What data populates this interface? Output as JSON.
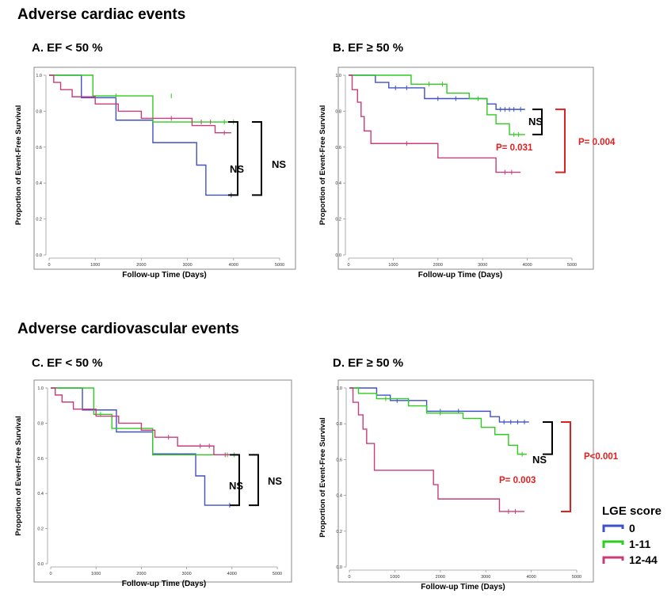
{
  "sections": [
    {
      "title": "Adverse cardiac events"
    },
    {
      "title": "Adverse cardiovascular events"
    }
  ],
  "legend": {
    "title": "LGE score",
    "items": [
      {
        "label": "0",
        "color": "#3f51c6"
      },
      {
        "label": "1-11",
        "color": "#2ecc1f"
      },
      {
        "label": "12-44",
        "color": "#c83c7c"
      }
    ]
  },
  "chart_data": [
    {
      "type": "line",
      "title": "A. EF < 50 %",
      "xlabel": "Follow-up Time (Days)",
      "ylabel": "Proportion of Event-Free Survival",
      "xlim": [
        0,
        5000
      ],
      "ylim": [
        0,
        1.0
      ],
      "x_ticks": [
        "0",
        "1000",
        "2000",
        "3000",
        "4000",
        "5000"
      ],
      "y_ticks": [
        "0.0",
        "0.2",
        "0.4",
        "0.6",
        "0.8",
        "1.0"
      ],
      "series": [
        {
          "name": "0",
          "color": "#3f51c6",
          "steps": [
            [
              0,
              1.0
            ],
            [
              700,
              0.875
            ],
            [
              1450,
              0.75
            ],
            [
              2250,
              0.625
            ],
            [
              3200,
              0.5
            ],
            [
              3400,
              0.333
            ],
            [
              4050,
              0.333
            ]
          ],
          "censor": [
            [
              3950,
              0.333
            ]
          ]
        },
        {
          "name": "1-11",
          "color": "#2ecc1f",
          "steps": [
            [
              0,
              1.0
            ],
            [
              950,
              0.885
            ],
            [
              2250,
              0.74
            ],
            [
              4100,
              0.74
            ]
          ],
          "censor": [
            [
              1450,
              0.885
            ],
            [
              2650,
              0.885
            ],
            [
              3800,
              0.74
            ],
            [
              4000,
              0.74
            ]
          ]
        },
        {
          "name": "12-44",
          "color": "#c83c7c",
          "steps": [
            [
              0,
              1.0
            ],
            [
              100,
              0.96
            ],
            [
              250,
              0.92
            ],
            [
              500,
              0.88
            ],
            [
              1000,
              0.84
            ],
            [
              1500,
              0.8
            ],
            [
              2000,
              0.76
            ],
            [
              3100,
              0.72
            ],
            [
              3600,
              0.68
            ],
            [
              3950,
              0.68
            ]
          ],
          "censor": [
            [
              2650,
              0.76
            ],
            [
              3300,
              0.74
            ],
            [
              3500,
              0.74
            ],
            [
              3800,
              0.68
            ]
          ]
        }
      ],
      "annotations": [
        {
          "text": "NS",
          "color": "#000000"
        },
        {
          "text": "NS",
          "color": "#000000"
        }
      ]
    },
    {
      "type": "line",
      "title": "B. EF ≥ 50 %",
      "xlabel": "Follow-up Time (Days)",
      "ylabel": "Proportion of Event-Free Survival",
      "xlim": [
        0,
        5000
      ],
      "ylim": [
        0,
        1.0
      ],
      "x_ticks": [
        "0",
        "1000",
        "2000",
        "3000",
        "4000",
        "5000"
      ],
      "y_ticks": [
        "0.0",
        "0.2",
        "0.4",
        "0.6",
        "0.8",
        "1.0"
      ],
      "series": [
        {
          "name": "0",
          "color": "#3f51c6",
          "steps": [
            [
              0,
              1.0
            ],
            [
              600,
              0.96
            ],
            [
              900,
              0.93
            ],
            [
              1700,
              0.87
            ],
            [
              3100,
              0.84
            ],
            [
              3300,
              0.81
            ],
            [
              3950,
              0.81
            ]
          ],
          "censor": [
            [
              1050,
              0.93
            ],
            [
              1300,
              0.93
            ],
            [
              2000,
              0.87
            ],
            [
              2400,
              0.87
            ],
            [
              3400,
              0.81
            ],
            [
              3500,
              0.81
            ],
            [
              3600,
              0.81
            ],
            [
              3700,
              0.81
            ],
            [
              3850,
              0.81
            ]
          ]
        },
        {
          "name": "1-11",
          "color": "#2ecc1f",
          "steps": [
            [
              0,
              1.0
            ],
            [
              1400,
              0.95
            ],
            [
              2200,
              0.9
            ],
            [
              2700,
              0.87
            ],
            [
              3100,
              0.78
            ],
            [
              3300,
              0.73
            ],
            [
              3600,
              0.67
            ],
            [
              3950,
              0.67
            ]
          ],
          "censor": [
            [
              1800,
              0.95
            ],
            [
              2100,
              0.95
            ],
            [
              2900,
              0.87
            ],
            [
              3700,
              0.67
            ],
            [
              3800,
              0.67
            ]
          ]
        },
        {
          "name": "12-44",
          "color": "#c83c7c",
          "steps": [
            [
              0,
              1.0
            ],
            [
              80,
              0.92
            ],
            [
              200,
              0.85
            ],
            [
              280,
              0.77
            ],
            [
              350,
              0.69
            ],
            [
              500,
              0.62
            ],
            [
              2000,
              0.54
            ],
            [
              3300,
              0.46
            ],
            [
              3850,
              0.46
            ]
          ],
          "censor": [
            [
              1300,
              0.62
            ],
            [
              3500,
              0.46
            ],
            [
              3650,
              0.46
            ]
          ]
        }
      ],
      "annotations": [
        {
          "text": "NS",
          "color": "#000000"
        },
        {
          "text": "P= 0.031",
          "color": "#e02020"
        },
        {
          "text": "P= 0.004",
          "color": "#e02020"
        }
      ]
    },
    {
      "type": "line",
      "title": "C. EF < 50 %",
      "xlabel": "Follow-up Time (Days)",
      "ylabel": "Proportion of Event-Free Survival",
      "xlim": [
        0,
        5000
      ],
      "ylim": [
        0,
        1.0
      ],
      "x_ticks": [
        "0",
        "1000",
        "2000",
        "3000",
        "4000",
        "5000"
      ],
      "y_ticks": [
        "0.0",
        "0.2",
        "0.4",
        "0.6",
        "0.8",
        "1.0"
      ],
      "series": [
        {
          "name": "0",
          "color": "#3f51c6",
          "steps": [
            [
              0,
              1.0
            ],
            [
              700,
              0.875
            ],
            [
              1450,
              0.75
            ],
            [
              2250,
              0.625
            ],
            [
              3200,
              0.5
            ],
            [
              3400,
              0.333
            ],
            [
              4050,
              0.333
            ]
          ],
          "censor": [
            [
              3950,
              0.333
            ]
          ]
        },
        {
          "name": "1-11",
          "color": "#2ecc1f",
          "steps": [
            [
              0,
              1.0
            ],
            [
              950,
              0.85
            ],
            [
              1350,
              0.77
            ],
            [
              2250,
              0.62
            ],
            [
              4100,
              0.62
            ]
          ],
          "censor": [
            [
              1100,
              0.85
            ],
            [
              3900,
              0.62
            ],
            [
              4050,
              0.62
            ]
          ]
        },
        {
          "name": "12-44",
          "color": "#c83c7c",
          "steps": [
            [
              0,
              1.0
            ],
            [
              100,
              0.96
            ],
            [
              250,
              0.92
            ],
            [
              500,
              0.88
            ],
            [
              1000,
              0.84
            ],
            [
              1500,
              0.8
            ],
            [
              2000,
              0.76
            ],
            [
              2300,
              0.72
            ],
            [
              2800,
              0.67
            ],
            [
              3600,
              0.62
            ],
            [
              3950,
              0.62
            ]
          ],
          "censor": [
            [
              2600,
              0.72
            ],
            [
              3300,
              0.67
            ],
            [
              3500,
              0.67
            ],
            [
              3850,
              0.62
            ]
          ]
        }
      ],
      "annotations": [
        {
          "text": "NS",
          "color": "#000000"
        },
        {
          "text": "NS",
          "color": "#000000"
        }
      ]
    },
    {
      "type": "line",
      "title": "D. EF ≥ 50 %",
      "xlabel": "Follow-up Time (Days)",
      "ylabel": "Proportion of Event-Free Survival",
      "xlim": [
        0,
        5000
      ],
      "ylim": [
        0,
        1.0
      ],
      "x_ticks": [
        "0",
        "1000",
        "2000",
        "3000",
        "4000",
        "5000"
      ],
      "y_ticks": [
        "0.0",
        "0.2",
        "0.4",
        "0.6",
        "0.8",
        "1.0"
      ],
      "series": [
        {
          "name": "0",
          "color": "#3f51c6",
          "steps": [
            [
              0,
              1.0
            ],
            [
              600,
              0.96
            ],
            [
              900,
              0.93
            ],
            [
              1700,
              0.87
            ],
            [
              3100,
              0.84
            ],
            [
              3300,
              0.81
            ],
            [
              3950,
              0.81
            ]
          ],
          "censor": [
            [
              1050,
              0.93
            ],
            [
              1300,
              0.93
            ],
            [
              2000,
              0.87
            ],
            [
              2400,
              0.87
            ],
            [
              3400,
              0.81
            ],
            [
              3550,
              0.81
            ],
            [
              3700,
              0.81
            ],
            [
              3850,
              0.81
            ]
          ]
        },
        {
          "name": "1-11",
          "color": "#2ecc1f",
          "steps": [
            [
              0,
              1.0
            ],
            [
              200,
              0.97
            ],
            [
              600,
              0.94
            ],
            [
              1300,
              0.9
            ],
            [
              1700,
              0.86
            ],
            [
              2500,
              0.83
            ],
            [
              2900,
              0.78
            ],
            [
              3200,
              0.74
            ],
            [
              3500,
              0.68
            ],
            [
              3700,
              0.63
            ],
            [
              3900,
              0.63
            ]
          ],
          "censor": [
            [
              800,
              0.94
            ],
            [
              2000,
              0.86
            ],
            [
              3800,
              0.63
            ]
          ]
        },
        {
          "name": "12-44",
          "color": "#c83c7c",
          "steps": [
            [
              0,
              1.0
            ],
            [
              80,
              0.92
            ],
            [
              200,
              0.85
            ],
            [
              300,
              0.77
            ],
            [
              380,
              0.69
            ],
            [
              550,
              0.54
            ],
            [
              1850,
              0.46
            ],
            [
              1950,
              0.38
            ],
            [
              3300,
              0.31
            ],
            [
              3850,
              0.31
            ]
          ],
          "censor": [
            [
              3500,
              0.31
            ],
            [
              3650,
              0.31
            ]
          ]
        }
      ],
      "annotations": [
        {
          "text": "NS",
          "color": "#000000"
        },
        {
          "text": "P= 0.003",
          "color": "#e02020"
        },
        {
          "text": "P<0.001",
          "color": "#e02020"
        }
      ]
    }
  ]
}
